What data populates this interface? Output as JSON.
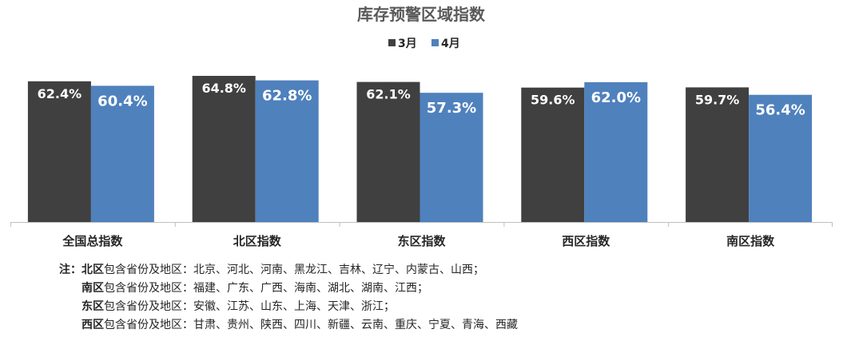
{
  "chart_data": {
    "type": "bar",
    "title": "库存预警区域指数",
    "categories": [
      "全国总指数",
      "北区指数",
      "东区指数",
      "西区指数",
      "南区指数"
    ],
    "series": [
      {
        "name": "3月",
        "color": "#404040",
        "values": [
          62.4,
          64.8,
          62.1,
          59.6,
          59.7
        ],
        "labels": [
          "62.4%",
          "64.8%",
          "62.1%",
          "59.6%",
          "59.7%"
        ]
      },
      {
        "name": "4月",
        "color": "#4F81BD",
        "values": [
          60.4,
          62.8,
          57.3,
          62.0,
          56.4
        ],
        "labels": [
          "60.4%",
          "62.8%",
          "57.3%",
          "62.0%",
          "56.4%"
        ]
      }
    ],
    "grid": false,
    "legend_position": "top-center"
  },
  "notes": {
    "prefix": "注：",
    "lines": [
      {
        "region": "北区",
        "text": "包含省份及地区：北京、河北、河南、黑龙江、吉林、辽宁、内蒙古、山西；"
      },
      {
        "region": "南区",
        "text": "包含省份及地区：福建、广东、广西、海南、湖北、湖南、江西；"
      },
      {
        "region": "东区",
        "text": "包含省份及地区：安徽、江苏、山东、上海、天津、浙江；"
      },
      {
        "region": "西区",
        "text": "包含省份及地区：甘肃、贵州、陕西、四川、新疆、云南、重庆、宁夏、青海、西藏"
      }
    ]
  }
}
